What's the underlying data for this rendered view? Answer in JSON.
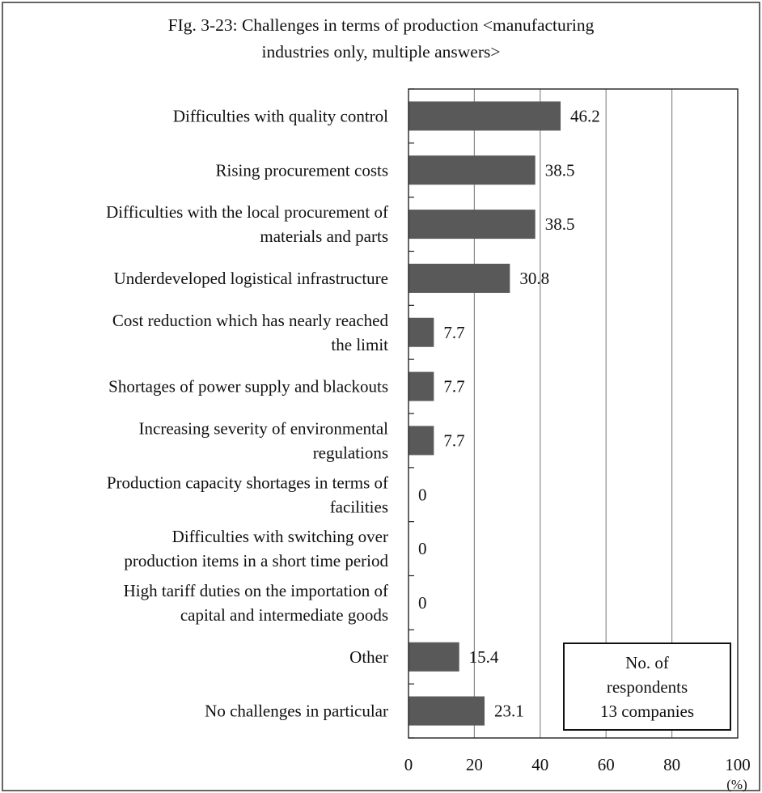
{
  "chart_data": {
    "type": "bar",
    "orientation": "horizontal",
    "title": "FIg. 3-23: Challenges in terms of production <manufacturing industries only, multiple answers>",
    "categories": [
      "Difficulties with quality control",
      "Rising procurement costs",
      "Difficulties with the local procurement of materials and parts",
      "Underdeveloped logistical infrastructure",
      "Cost reduction which has nearly reached the limit",
      "Shortages of power supply and blackouts",
      "Increasing severity of environmental regulations",
      "Production capacity shortages in terms of facilities",
      "Difficulties with switching over production items in a short time period",
      "High tariff duties on the importation of capital and intermediate goods",
      "Other",
      "No challenges in particular"
    ],
    "category_lines": [
      [
        "Difficulties with quality control"
      ],
      [
        "Rising procurement costs"
      ],
      [
        "Difficulties with the local procurement of",
        "materials and parts"
      ],
      [
        "Underdeveloped logistical infrastructure"
      ],
      [
        "Cost reduction which has nearly reached",
        "the limit"
      ],
      [
        "Shortages of power supply and blackouts"
      ],
      [
        "Increasing severity of environmental",
        "regulations"
      ],
      [
        "Production capacity shortages in terms of",
        "facilities"
      ],
      [
        "Difficulties with switching over",
        "production items in a short time period"
      ],
      [
        "High tariff duties on the importation of",
        "capital and intermediate goods"
      ],
      [
        "Other"
      ],
      [
        "No challenges in particular"
      ]
    ],
    "values": [
      46.2,
      38.5,
      38.5,
      30.8,
      7.7,
      7.7,
      7.7,
      0,
      0,
      0,
      15.4,
      23.1
    ],
    "value_labels": [
      "46.2",
      "38.5",
      "38.5",
      "30.8",
      "7.7",
      "7.7",
      "7.7",
      "0",
      "0",
      "0",
      "15.4",
      "23.1"
    ],
    "xlim": [
      0,
      100
    ],
    "xticks": [
      0,
      20,
      40,
      60,
      80,
      100
    ],
    "xlabel": "(%)",
    "ylabel": "",
    "grid": "vertical",
    "bar_color": "#595959",
    "annotation": {
      "lines": [
        "No. of",
        "respondents",
        "13 companies"
      ],
      "placement": "bottom-right"
    }
  }
}
